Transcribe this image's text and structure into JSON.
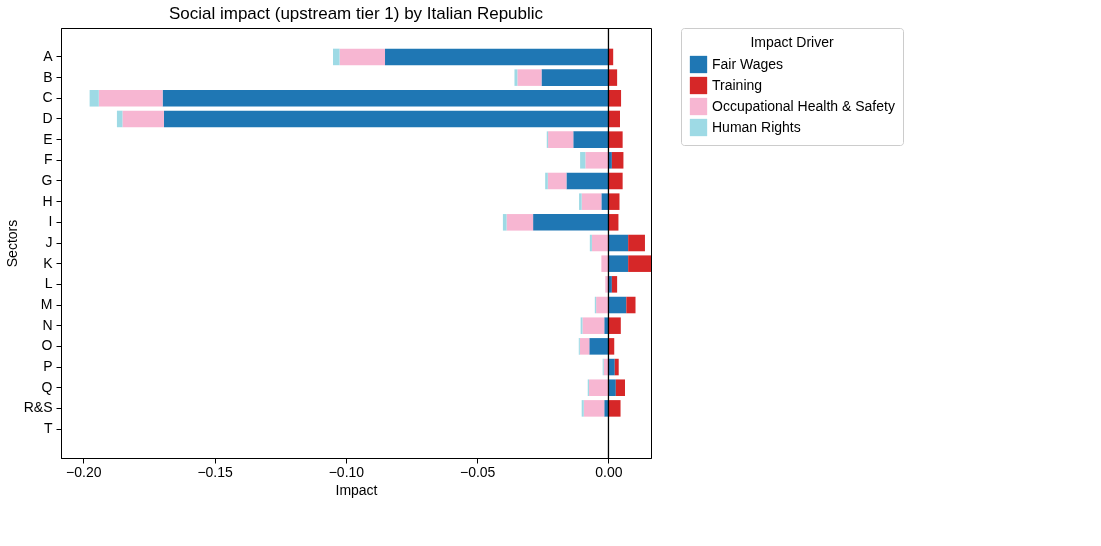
{
  "chart_data": {
    "type": "bar",
    "orientation": "horizontal",
    "stacked": true,
    "title": "Social impact (upstream tier 1) by Italian Republic",
    "xlabel": "Impact",
    "ylabel": "Sectors",
    "legend_title": "Impact Driver",
    "categories": [
      "A",
      "B",
      "C",
      "D",
      "E",
      "F",
      "G",
      "H",
      "I",
      "J",
      "K",
      "L",
      "M",
      "N",
      "O",
      "P",
      "Q",
      "R&S",
      "T"
    ],
    "series": [
      {
        "name": "Fair Wages",
        "color": "#1f77b4",
        "values": [
          -0.0851,
          -0.0255,
          -0.1698,
          -0.1693,
          -0.0134,
          0.0013,
          -0.016,
          -0.0027,
          -0.0287,
          0.0075,
          0.0075,
          0.0013,
          0.0068,
          -0.0016,
          -0.0073,
          0.0024,
          0.0028,
          -0.0016,
          null
        ]
      },
      {
        "name": "Training",
        "color": "#d62728",
        "values": [
          0.0018,
          0.0033,
          0.0048,
          0.0044,
          0.0054,
          0.0044,
          0.0054,
          0.0042,
          0.0038,
          0.0064,
          0.0087,
          0.002,
          0.0035,
          0.0047,
          0.0022,
          0.0015,
          0.0035,
          0.0046,
          null
        ]
      },
      {
        "name": "Occupational Health & Safety",
        "color": "#f7b6d2",
        "values": [
          -0.0173,
          -0.0092,
          -0.0243,
          -0.0158,
          -0.0096,
          -0.0088,
          -0.0071,
          -0.0075,
          -0.0101,
          -0.0063,
          -0.0027,
          -0.0012,
          -0.0047,
          -0.0083,
          -0.0036,
          -0.0018,
          -0.0074,
          -0.0078,
          null
        ]
      },
      {
        "name": "Human Rights",
        "color": "#9edae5",
        "values": [
          -0.0025,
          -0.0011,
          -0.0035,
          -0.0021,
          -0.0005,
          -0.002,
          -0.001,
          -0.001,
          -0.0014,
          -0.0008,
          null,
          null,
          -0.0005,
          -0.0007,
          -0.0004,
          -0.0004,
          -0.0005,
          -0.0008,
          null
        ]
      }
    ],
    "xlim": [
      -0.2085,
      0.0162
    ],
    "xticks": [
      {
        "value": -0.2,
        "label": "−0.20"
      },
      {
        "value": -0.15,
        "label": "−0.15"
      },
      {
        "value": -0.1,
        "label": "−0.10"
      },
      {
        "value": -0.05,
        "label": "−0.05"
      },
      {
        "value": 0,
        "label": "0.00"
      }
    ],
    "ref_lines": [
      {
        "axis": "x",
        "value": 0,
        "color": "#000000"
      }
    ],
    "grid": false,
    "legend": "top right"
  }
}
